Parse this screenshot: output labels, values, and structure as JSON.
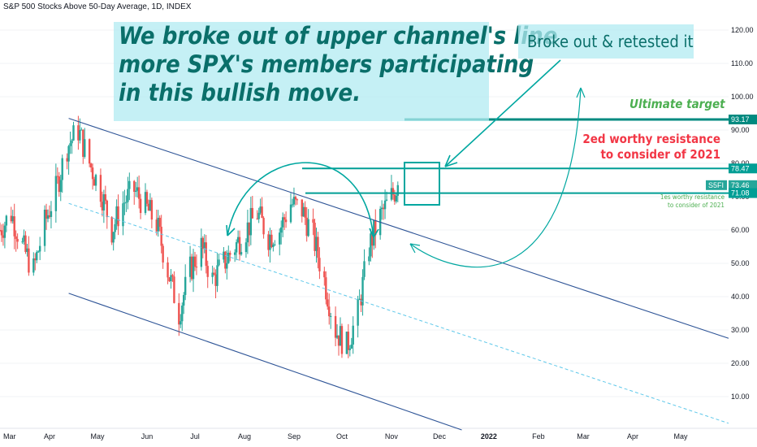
{
  "header": {
    "title": "S&P 500 Stocks Above 50-Day Average, 1D, INDEX"
  },
  "annotations": {
    "callout_main": [
      "We broke out of upper channel's line",
      "more SPX's members participating",
      "in this bullish move."
    ],
    "callout_retest": "Broke out & retested it",
    "ultimate_target": "Ultimate target",
    "resistance_2": [
      "2ed worthy resistance",
      "to consider of 2021"
    ],
    "resistance_1": [
      "1es worthy resistance",
      "to consider of 2021"
    ]
  },
  "price_badges": {
    "target": "93.17",
    "resistance_2": "78.47",
    "symbol": "S5FI",
    "last": "73.46",
    "resistance_1": "71.08"
  },
  "colors": {
    "up": "#26a69a",
    "down": "#ef5350",
    "channel": "#2f5597",
    "annotation": "#00a7a0",
    "target_label": "#4caf50",
    "resistance_label": "#f23645",
    "callout_text": "#0a6f6a"
  },
  "chart_data": {
    "type": "candlestick",
    "title": "S&P 500 Stocks Above 50-Day Average, 1D, INDEX",
    "y_ticks": [
      "10.00",
      "20.00",
      "30.00",
      "40.00",
      "50.00",
      "60.00",
      "70.00",
      "80.00",
      "90.00",
      "100.00",
      "110.00",
      "120.00"
    ],
    "ylim": [
      0,
      124
    ],
    "x_ticks": [
      "Mar",
      "Apr",
      "May",
      "Jun",
      "Jul",
      "Aug",
      "Sep",
      "Oct",
      "Nov",
      "Dec",
      "2022",
      "Feb",
      "Mar",
      "Apr",
      "May"
    ],
    "x_range": [
      "2021-03-01",
      "2022-05-31"
    ],
    "series_trend": [
      [
        "2021-03-01",
        60
      ],
      [
        "2021-03-08",
        65
      ],
      [
        "2021-03-15",
        55
      ],
      [
        "2021-03-22",
        48
      ],
      [
        "2021-03-29",
        62
      ],
      [
        "2021-04-05",
        72
      ],
      [
        "2021-04-12",
        85
      ],
      [
        "2021-04-19",
        90
      ],
      [
        "2021-04-26",
        80
      ],
      [
        "2021-05-03",
        72
      ],
      [
        "2021-05-10",
        60
      ],
      [
        "2021-05-17",
        68
      ],
      [
        "2021-05-24",
        72
      ],
      [
        "2021-05-31",
        67
      ],
      [
        "2021-06-07",
        62
      ],
      [
        "2021-06-14",
        48
      ],
      [
        "2021-06-21",
        35
      ],
      [
        "2021-06-28",
        48
      ],
      [
        "2021-07-05",
        55
      ],
      [
        "2021-07-12",
        45
      ],
      [
        "2021-07-19",
        50
      ],
      [
        "2021-07-26",
        55
      ],
      [
        "2021-08-02",
        60
      ],
      [
        "2021-08-09",
        65
      ],
      [
        "2021-08-16",
        58
      ],
      [
        "2021-08-23",
        60
      ],
      [
        "2021-08-30",
        68
      ],
      [
        "2021-09-06",
        66
      ],
      [
        "2021-09-13",
        58
      ],
      [
        "2021-09-20",
        45
      ],
      [
        "2021-09-27",
        30
      ],
      [
        "2021-10-04",
        25
      ],
      [
        "2021-10-11",
        35
      ],
      [
        "2021-10-18",
        55
      ],
      [
        "2021-10-25",
        64
      ],
      [
        "2021-11-01",
        70
      ],
      [
        "2021-11-05",
        73.46
      ]
    ],
    "channel": {
      "upper": [
        [
          "2021-04-13",
          93.5
        ],
        [
          "2022-05-31",
          27.5
        ]
      ],
      "mid": [
        [
          "2021-04-13",
          68
        ],
        [
          "2022-05-31",
          2
        ]
      ],
      "lower": [
        [
          "2021-04-13",
          41
        ],
        [
          "2021-12-15",
          0
        ]
      ]
    },
    "levels": [
      {
        "value": 93.17,
        "label": "Ultimate target"
      },
      {
        "value": 78.47,
        "label": "2ed worthy resistance"
      },
      {
        "value": 71.08,
        "label": "1es worthy resistance"
      }
    ],
    "last": 73.46
  }
}
